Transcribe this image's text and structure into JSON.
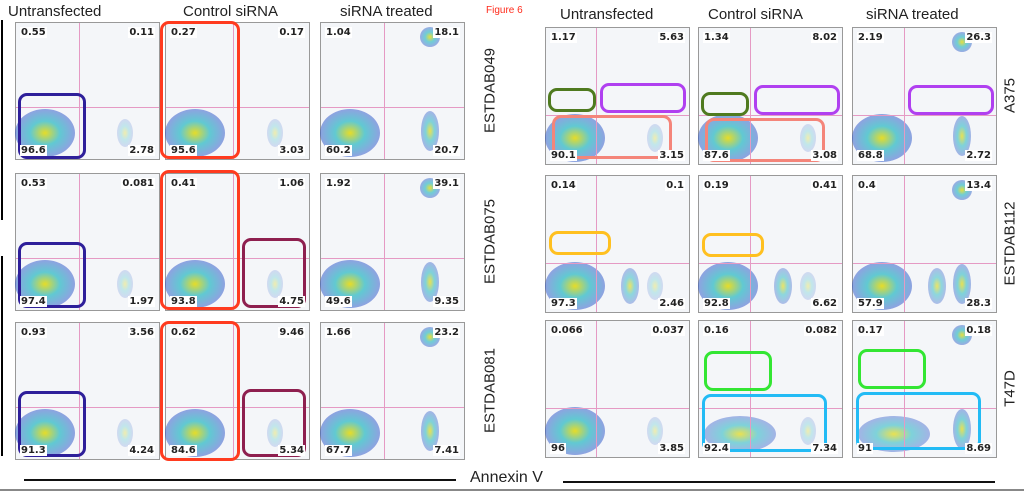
{
  "figure_label": "Figure 6",
  "x_axis_label": "Annexin V",
  "left": {
    "columns": [
      "Untransfected",
      "Control siRNA",
      "siRNA treated"
    ],
    "rows": [
      "ESTDAB049",
      "ESTDAB075",
      "ESTDAB081"
    ],
    "panels": [
      [
        {
          "ul": "0.55",
          "ur": "0.11",
          "ll": "96.6",
          "lr": "2.78"
        },
        {
          "ul": "0.27",
          "ur": "0.17",
          "ll": "95.6",
          "lr": "3.03"
        },
        {
          "ul": "1.04",
          "ur": "18.1",
          "ll": "60.2",
          "lr": "20.7"
        }
      ],
      [
        {
          "ul": "0.53",
          "ur": "0.081",
          "ll": "97.4",
          "lr": "1.97"
        },
        {
          "ul": "0.41",
          "ur": "1.06",
          "ll": "93.8",
          "lr": "4.75"
        },
        {
          "ul": "1.92",
          "ur": "39.1",
          "ll": "49.6",
          "lr": "9.35"
        }
      ],
      [
        {
          "ul": "0.93",
          "ur": "3.56",
          "ll": "91.3",
          "lr": "4.24"
        },
        {
          "ul": "0.62",
          "ur": "9.46",
          "ll": "84.6",
          "lr": "5.34"
        },
        {
          "ul": "1.66",
          "ur": "23.2",
          "ll": "67.7",
          "lr": "7.41"
        }
      ]
    ]
  },
  "right": {
    "columns": [
      "Untransfected",
      "Control siRNA",
      "siRNA treated"
    ],
    "rows": [
      "A375",
      "ESTDAB112",
      "T47D"
    ],
    "panels": [
      [
        {
          "ul": "1.17",
          "ur": "5.63",
          "ll": "90.1",
          "lr": "3.15"
        },
        {
          "ul": "1.34",
          "ur": "8.02",
          "ll": "87.6",
          "lr": "3.08"
        },
        {
          "ul": "2.19",
          "ur": "26.3",
          "ll": "68.8",
          "lr": "2.72"
        }
      ],
      [
        {
          "ul": "0.14",
          "ur": "0.1",
          "ll": "97.3",
          "lr": "2.46"
        },
        {
          "ul": "0.19",
          "ur": "0.41",
          "ll": "92.8",
          "lr": "6.62"
        },
        {
          "ul": "0.4",
          "ur": "13.4",
          "ll": "57.9",
          "lr": "28.3"
        }
      ],
      [
        {
          "ul": "0.066",
          "ur": "0.037",
          "ll": "96",
          "lr": "3.85"
        },
        {
          "ul": "0.16",
          "ur": "0.082",
          "ll": "92.4",
          "lr": "7.34"
        },
        {
          "ul": "0.17",
          "ur": "0.18",
          "ll": "91",
          "lr": "8.69"
        }
      ]
    ]
  },
  "gate_colors": {
    "blue": "#2e1f9a",
    "red": "#ff3b1f",
    "maroon": "#8e1f4f",
    "green": "#4f7a1f",
    "purple": "#b040f0",
    "salmon": "#f4857a",
    "yellow": "#ffc020",
    "lime": "#33e633",
    "cyan": "#22bbf5"
  },
  "figure_label_color": "#ff2a1a"
}
